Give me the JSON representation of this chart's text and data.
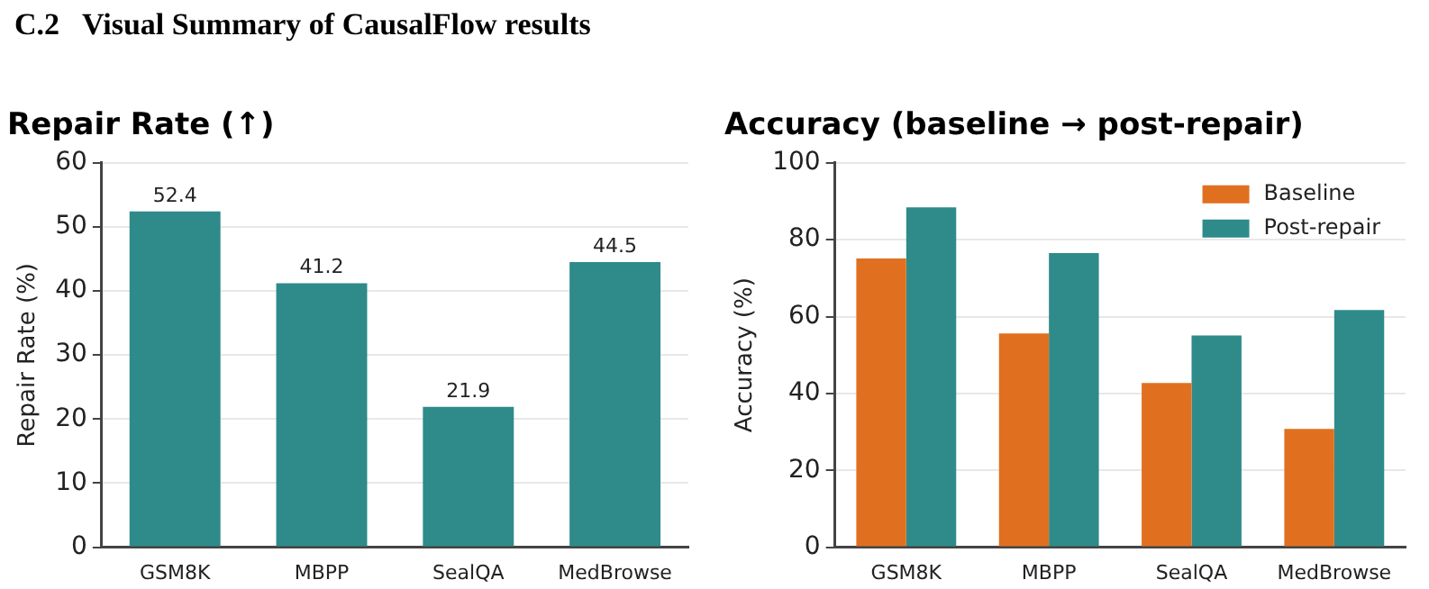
{
  "chart_data": [
    {
      "type": "bar",
      "title": "Repair Rate (↑)",
      "ylabel": "Repair Rate (%)",
      "annotations": [
        "C.2   Visual Summary of CausalFlow results"
      ],
      "categories": [
        "GSM8K",
        "MBPP",
        "SealQA",
        "MedBrowse"
      ],
      "series": [
        {
          "color": "#2e8b8a",
          "values": [
            52.4,
            41.2,
            21.9,
            44.5
          ]
        }
      ],
      "ylim": [
        0,
        60
      ],
      "yticks": [
        0,
        10,
        20,
        30,
        40,
        50,
        60
      ],
      "grid": "y",
      "data_labels": true,
      "legend": false
    },
    {
      "type": "bar",
      "title": "Accuracy (baseline → post-repair)",
      "ylabel": "Accuracy (%)",
      "categories": [
        "GSM8K",
        "MBPP",
        "SealQA",
        "MedBrowse"
      ],
      "series": [
        {
          "name": "Baseline",
          "color": "#e07020",
          "values": [
            75.1,
            55.6,
            42.7,
            30.8
          ]
        },
        {
          "name": "Post-repair",
          "color": "#2e8b8a",
          "values": [
            88.4,
            76.5,
            55.1,
            61.7
          ]
        }
      ],
      "ylim": [
        0,
        100
      ],
      "yticks": [
        0,
        20,
        40,
        60,
        80,
        100
      ],
      "grid": "y",
      "legend": "top right"
    }
  ]
}
